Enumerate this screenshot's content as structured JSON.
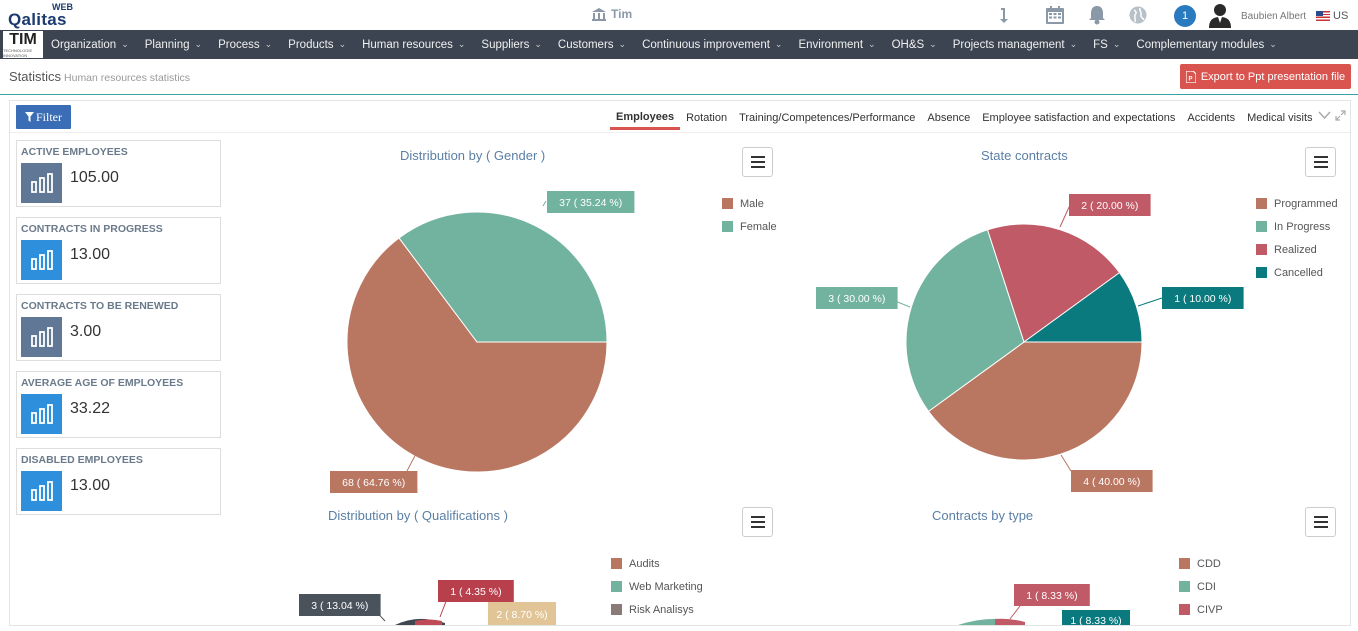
{
  "app": {
    "logo_web": "WEB",
    "logo_name": "Qalitas",
    "company": "Tim",
    "notification_count": "1",
    "user_name": "Baubien Albert",
    "language": "US"
  },
  "nav": {
    "logo_text": "TIM",
    "logo_sub": "TECHNOLOGIE INNOVATION",
    "items": [
      {
        "label": "Organization"
      },
      {
        "label": "Planning"
      },
      {
        "label": "Process"
      },
      {
        "label": "Products"
      },
      {
        "label": "Human resources"
      },
      {
        "label": "Suppliers"
      },
      {
        "label": "Customers"
      },
      {
        "label": "Continuous improvement"
      },
      {
        "label": "Environment"
      },
      {
        "label": "OH&S"
      },
      {
        "label": "Projects management"
      },
      {
        "label": "FS"
      },
      {
        "label": "Complementary modules"
      }
    ]
  },
  "page": {
    "title": "Statistics",
    "subtitle": "Human resources statistics",
    "export_label": "Export to Ppt presentation file",
    "filter_label": "Filter"
  },
  "tabs": [
    {
      "label": "Employees",
      "active": true
    },
    {
      "label": "Rotation"
    },
    {
      "label": "Training/Competences/Performance"
    },
    {
      "label": "Absence"
    },
    {
      "label": "Employee satisfaction and expectations"
    },
    {
      "label": "Accidents"
    },
    {
      "label": "Medical visits"
    }
  ],
  "kpis": [
    {
      "label": "ACTIVE EMPLOYEES",
      "value": "105.00",
      "color": "#607795"
    },
    {
      "label": "CONTRACTS IN PROGRESS",
      "value": "13.00",
      "color": "#2e8fdc"
    },
    {
      "label": "CONTRACTS TO BE RENEWED",
      "value": "3.00",
      "color": "#607795"
    },
    {
      "label": "AVERAGE AGE OF EMPLOYEES",
      "value": "33.22",
      "color": "#2e8fdc"
    },
    {
      "label": "DISABLED EMPLOYEES",
      "value": "13.00",
      "color": "#2e8fdc"
    }
  ],
  "chart_data": [
    {
      "type": "pie",
      "title": "Distribution by ( Gender )",
      "categories": [
        "Male",
        "Female"
      ],
      "values": [
        68,
        37
      ],
      "labels": [
        "68 ( 64.76 %)",
        "37 ( 35.24 %)"
      ],
      "colors": [
        "#b97762",
        "#72b3a0"
      ],
      "legend": "right"
    },
    {
      "type": "pie",
      "title": "State contracts",
      "categories": [
        "Programmed",
        "In Progress",
        "Realized",
        "Cancelled"
      ],
      "values": [
        4,
        3,
        2,
        1
      ],
      "labels": [
        "4 ( 40.00 %)",
        "3 ( 30.00 %)",
        "2 ( 20.00 %)",
        "1 ( 10.00 %)"
      ],
      "colors": [
        "#b97762",
        "#72b3a0",
        "#bf5a66",
        "#0b7a7f"
      ],
      "legend": "right"
    },
    {
      "type": "pie",
      "title": "Distribution by ( Qualifications )",
      "categories": [
        "Audits",
        "Web Marketing",
        "Risk Analisys"
      ],
      "labels": [
        "3 ( 13.04 %)",
        "1 ( 4.35 %)",
        "2 ( 8.70 %)"
      ],
      "colors": [
        "#b97762",
        "#72b3a0",
        "#8a7a78"
      ],
      "legend": "right"
    },
    {
      "type": "pie",
      "title": "Contracts by type",
      "categories": [
        "CDD",
        "CDI",
        "CIVP"
      ],
      "labels": [
        "1 ( 8.33 %)",
        "1 ( 8.33 %)"
      ],
      "colors": [
        "#b97762",
        "#72b3a0",
        "#bf5a66"
      ],
      "legend": "right"
    }
  ]
}
